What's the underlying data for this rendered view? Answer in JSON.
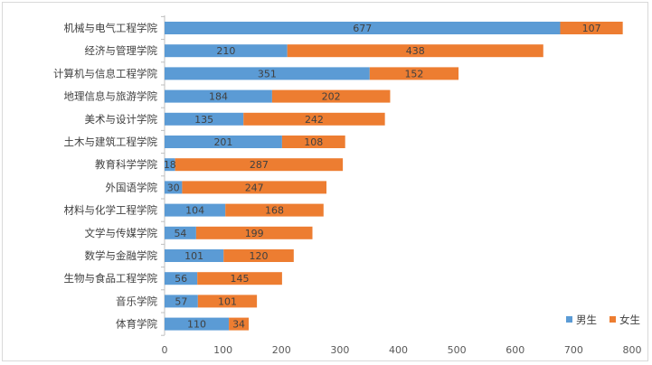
{
  "chart_data": {
    "type": "bar",
    "orientation": "horizontal",
    "stacked": true,
    "title": "",
    "xlabel": "",
    "ylabel": "",
    "xlim": [
      0,
      800
    ],
    "xticks": [
      0,
      100,
      200,
      300,
      400,
      500,
      600,
      700,
      800
    ],
    "grid": false,
    "legend_position": "bottom-right",
    "categories": [
      "机械与电气工程学院",
      "经济与管理学院",
      "计算机与信息工程学院",
      "地理信息与旅游学院",
      "美术与设计学院",
      "土木与建筑工程学院",
      "教育科学学院",
      "外国语学院",
      "材料与化学工程学院",
      "文学与传媒学院",
      "数学与金融学院",
      "生物与食品工程学院",
      "音乐学院",
      "体育学院"
    ],
    "series": [
      {
        "name": "男生",
        "color": "#5b9bd5",
        "values": [
          677,
          210,
          351,
          184,
          135,
          201,
          18,
          30,
          104,
          54,
          101,
          56,
          57,
          110
        ]
      },
      {
        "name": "女生",
        "color": "#ed7d31",
        "values": [
          107,
          438,
          152,
          202,
          242,
          108,
          287,
          247,
          168,
          199,
          120,
          145,
          101,
          34
        ]
      }
    ]
  }
}
